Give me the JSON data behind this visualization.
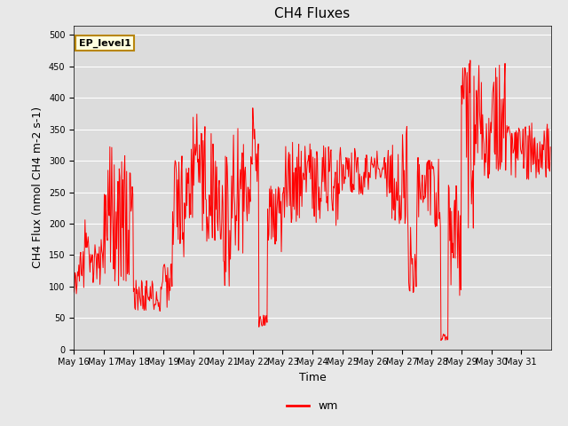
{
  "title": "CH4 Fluxes",
  "xlabel": "Time",
  "ylabel": "CH4 Flux (nmol CH4 m-2 s-1)",
  "legend_label": "wm",
  "annotation_text": "EP_level1",
  "line_color": "#FF0000",
  "bg_color": "#DCDCDC",
  "fig_bg_color": "#E8E8E8",
  "ylim": [
    0,
    515
  ],
  "yticks": [
    0,
    50,
    100,
    150,
    200,
    250,
    300,
    350,
    400,
    450,
    500
  ],
  "title_fontsize": 11,
  "axis_fontsize": 9,
  "tick_fontsize": 7,
  "legend_fontsize": 9,
  "annot_fontsize": 8,
  "linewidth": 0.7
}
